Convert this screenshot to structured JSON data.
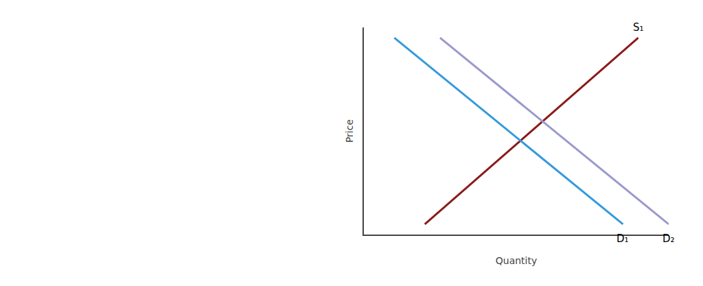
{
  "chart_data": {
    "type": "line",
    "xlabel": "Quantity",
    "ylabel": "Price",
    "xlim": [
      0,
      10
    ],
    "ylim": [
      0,
      10
    ],
    "xticks": [],
    "yticks": [],
    "tick_labels": false,
    "grid": false,
    "series": [
      {
        "name": "S₁",
        "color": "#8B1A1A",
        "x": [
          2.0,
          9.0
        ],
        "values": [
          0.5,
          9.5
        ]
      },
      {
        "name": "D₁",
        "color": "#3399DD",
        "x": [
          1.0,
          8.5
        ],
        "values": [
          9.5,
          0.5
        ]
      },
      {
        "name": "D₂",
        "color": "#9999CC",
        "x": [
          2.5,
          10.0
        ],
        "values": [
          9.5,
          0.5
        ]
      }
    ]
  }
}
